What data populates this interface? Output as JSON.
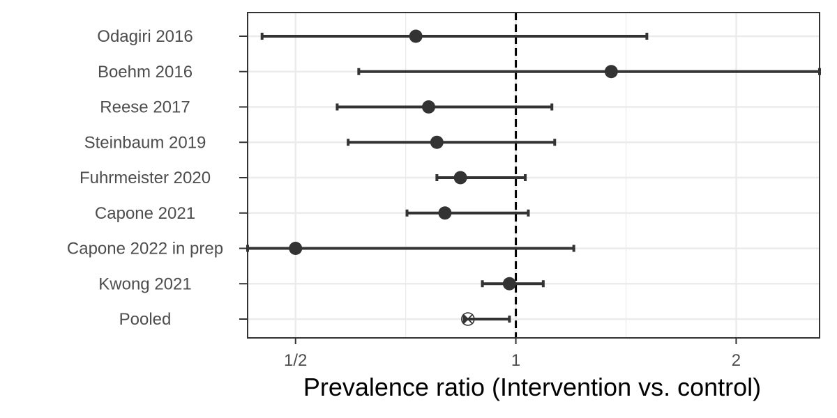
{
  "chart_data": {
    "type": "forest",
    "title": "",
    "xlabel": "Prevalence ratio (Intervention vs. control)",
    "ylabel": "",
    "x_scale": "log2",
    "xlim": [
      0.43,
      2.6
    ],
    "xticks": [
      {
        "value": 0.5,
        "label": "1/2"
      },
      {
        "value": 1,
        "label": "1"
      },
      {
        "value": 2,
        "label": "2"
      }
    ],
    "reference_line": 1,
    "grid": true,
    "studies": [
      {
        "label": "Odagiri 2016",
        "estimate": 0.73,
        "lower": 0.45,
        "upper": 1.51,
        "marker": "circle"
      },
      {
        "label": "Boehm 2016",
        "estimate": 1.35,
        "lower": 0.61,
        "upper": 2.77,
        "marker": "circle"
      },
      {
        "label": "Reese 2017",
        "estimate": 0.76,
        "lower": 0.57,
        "upper": 1.12,
        "marker": "circle"
      },
      {
        "label": "Steinbaum 2019",
        "estimate": 0.78,
        "lower": 0.59,
        "upper": 1.13,
        "marker": "circle"
      },
      {
        "label": "Fuhrmeister 2020",
        "estimate": 0.84,
        "lower": 0.78,
        "upper": 1.03,
        "marker": "circle"
      },
      {
        "label": "Capone 2021",
        "estimate": 0.8,
        "lower": 0.71,
        "upper": 1.04,
        "marker": "circle"
      },
      {
        "label": "Capone 2022 in prep",
        "estimate": 0.5,
        "lower": 0.43,
        "upper": 1.2,
        "marker": "circle"
      },
      {
        "label": "Kwong 2021",
        "estimate": 0.98,
        "lower": 0.9,
        "upper": 1.09,
        "marker": "circle"
      },
      {
        "label": "Pooled",
        "estimate": 0.86,
        "lower": 0.85,
        "upper": 0.98,
        "marker": "crossed-circle"
      }
    ],
    "colors": {
      "estimate": "#333333",
      "grid": "#ebebeb",
      "panel_border": "#333333",
      "reference_line": "#000000"
    }
  }
}
